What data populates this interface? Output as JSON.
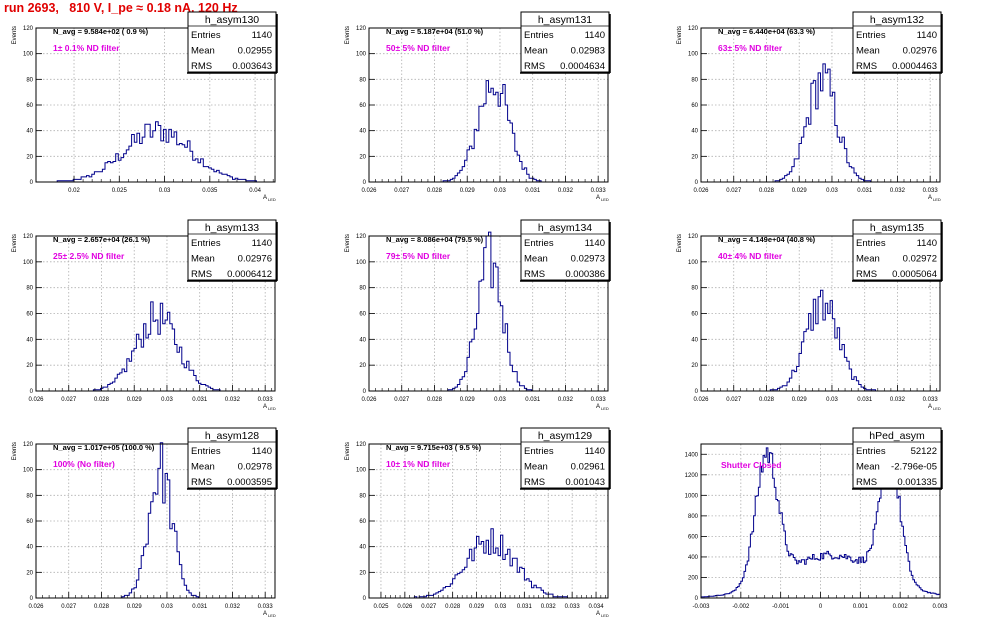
{
  "page": {
    "title": "run 2693,   810 V, I_pe ≈ 0.18 nA, 120 Hz"
  },
  "colors": {
    "title": "#e00000",
    "histogram": "#00008b",
    "annotation": "#e000e0",
    "grid": "#b0b0b0",
    "axis": "#000000"
  },
  "chart_data": [
    {
      "type": "histogram",
      "stats": {
        "name": "h_asym130",
        "entries": "1140",
        "mean": "0.02955",
        "rms": "0.003643"
      },
      "navg": "N_avg = 9.584e+02 ( 0.9 %)",
      "annotation": "1± 0.1% ND filter",
      "ylabel": "Events",
      "xlabel": "A",
      "xlabel_sub": "LED",
      "xlim": [
        0.0158,
        0.0422
      ],
      "ylim": [
        0,
        120
      ],
      "xticks": [
        0.02,
        0.025,
        0.03,
        0.035,
        0.04
      ],
      "xtick_labels": [
        "0.02",
        "0.025",
        "0.03",
        "0.035",
        "0.04"
      ],
      "yticks": [
        0,
        20,
        40,
        60,
        80,
        100,
        120
      ],
      "ytick_labels": [
        "0",
        "20",
        "40",
        "60",
        "80",
        "100",
        "120"
      ],
      "peak_x": 0.0293,
      "sigma": 0.0037,
      "peak_y": 40,
      "bins": 90
    },
    {
      "type": "histogram",
      "stats": {
        "name": "h_asym131",
        "entries": "1140",
        "mean": "0.02983",
        "rms": "0.0004634"
      },
      "navg": "N_avg = 5.187e+04 (51.0 %)",
      "annotation": "50± 5% ND filter",
      "ylabel": "Events",
      "xlabel": "A",
      "xlabel_sub": "LED",
      "xlim": [
        0.026,
        0.0333
      ],
      "ylim": [
        0,
        120
      ],
      "xticks": [
        0.026,
        0.027,
        0.028,
        0.029,
        0.03,
        0.031,
        0.032,
        0.033
      ],
      "xtick_labels": [
        "0.026",
        "0.027",
        "0.028",
        "0.029",
        "0.03",
        "0.031",
        "0.032",
        "0.033"
      ],
      "yticks": [
        0,
        20,
        40,
        60,
        80,
        100,
        120
      ],
      "ytick_labels": [
        "0",
        "20",
        "40",
        "60",
        "80",
        "100",
        "120"
      ],
      "peak_x": 0.0298,
      "sigma": 0.00047,
      "peak_y": 78,
      "bins": 100
    },
    {
      "type": "histogram",
      "stats": {
        "name": "h_asym132",
        "entries": "1140",
        "mean": "0.02976",
        "rms": "0.0004463"
      },
      "navg": "N_avg = 6.440e+04 (63.3 %)",
      "annotation": "63± 5% ND filter",
      "ylabel": "Events",
      "xlabel": "A",
      "xlabel_sub": "LED",
      "xlim": [
        0.026,
        0.0333
      ],
      "ylim": [
        0,
        120
      ],
      "xticks": [
        0.026,
        0.027,
        0.028,
        0.029,
        0.03,
        0.031,
        0.032,
        0.033
      ],
      "xtick_labels": [
        "0.026",
        "0.027",
        "0.028",
        "0.029",
        "0.03",
        "0.031",
        "0.032",
        "0.033"
      ],
      "yticks": [
        0,
        20,
        40,
        60,
        80,
        100,
        120
      ],
      "ytick_labels": [
        "0",
        "20",
        "40",
        "60",
        "80",
        "100",
        "120"
      ],
      "peak_x": 0.0297,
      "sigma": 0.00045,
      "peak_y": 80,
      "bins": 100
    },
    {
      "type": "histogram",
      "stats": {
        "name": "h_asym133",
        "entries": "1140",
        "mean": "0.02976",
        "rms": "0.0006412"
      },
      "navg": "N_avg = 2.657e+04 (26.1 %)",
      "annotation": "25± 2.5% ND filter",
      "ylabel": "Events",
      "xlabel": "A",
      "xlabel_sub": "LED",
      "xlim": [
        0.026,
        0.0333
      ],
      "ylim": [
        0,
        120
      ],
      "xticks": [
        0.026,
        0.027,
        0.028,
        0.029,
        0.03,
        0.031,
        0.032,
        0.033
      ],
      "xtick_labels": [
        "0.026",
        "0.027",
        "0.028",
        "0.029",
        "0.03",
        "0.031",
        "0.032",
        "0.033"
      ],
      "yticks": [
        0,
        20,
        40,
        60,
        80,
        100,
        120
      ],
      "ytick_labels": [
        "0",
        "20",
        "40",
        "60",
        "80",
        "100",
        "120"
      ],
      "peak_x": 0.0297,
      "sigma": 0.00064,
      "peak_y": 57,
      "bins": 100
    },
    {
      "type": "histogram",
      "stats": {
        "name": "h_asym134",
        "entries": "1140",
        "mean": "0.02973",
        "rms": "0.000386"
      },
      "navg": "N_avg = 8.086e+04 (79.5 %)",
      "annotation": "79± 5% ND filter",
      "ylabel": "Events",
      "xlabel": "A",
      "xlabel_sub": "LED",
      "xlim": [
        0.026,
        0.0333
      ],
      "ylim": [
        0,
        120
      ],
      "xticks": [
        0.026,
        0.027,
        0.028,
        0.029,
        0.03,
        0.031,
        0.032,
        0.033
      ],
      "xtick_labels": [
        "0.026",
        "0.027",
        "0.028",
        "0.029",
        "0.03",
        "0.031",
        "0.032",
        "0.033"
      ],
      "yticks": [
        0,
        20,
        40,
        60,
        80,
        100,
        120
      ],
      "ytick_labels": [
        "0",
        "20",
        "40",
        "60",
        "80",
        "100",
        "120"
      ],
      "peak_x": 0.0297,
      "sigma": 0.00039,
      "peak_y": 100,
      "bins": 100
    },
    {
      "type": "histogram",
      "stats": {
        "name": "h_asym135",
        "entries": "1140",
        "mean": "0.02972",
        "rms": "0.0005064"
      },
      "navg": "N_avg = 4.149e+04 (40.8 %)",
      "annotation": "40± 4% ND filter",
      "ylabel": "Events",
      "xlabel": "A",
      "xlabel_sub": "LED",
      "xlim": [
        0.026,
        0.0333
      ],
      "ylim": [
        0,
        120
      ],
      "xticks": [
        0.026,
        0.027,
        0.028,
        0.029,
        0.03,
        0.031,
        0.032,
        0.033
      ],
      "xtick_labels": [
        "0.026",
        "0.027",
        "0.028",
        "0.029",
        "0.03",
        "0.031",
        "0.032",
        "0.033"
      ],
      "yticks": [
        0,
        20,
        40,
        60,
        80,
        100,
        120
      ],
      "ytick_labels": [
        "0",
        "20",
        "40",
        "60",
        "80",
        "100",
        "120"
      ],
      "peak_x": 0.0297,
      "sigma": 0.0005,
      "peak_y": 68,
      "bins": 100
    },
    {
      "type": "histogram",
      "stats": {
        "name": "h_asym128",
        "entries": "1140",
        "mean": "0.02978",
        "rms": "0.0003595"
      },
      "navg": "N_avg = 1.017e+05 (100.0 %)",
      "annotation": "100% (No filter)",
      "ylabel": "Events",
      "xlabel": "A",
      "xlabel_sub": "LED",
      "xlim": [
        0.026,
        0.0333
      ],
      "ylim": [
        0,
        120
      ],
      "xticks": [
        0.026,
        0.027,
        0.028,
        0.029,
        0.03,
        0.031,
        0.032,
        0.033
      ],
      "xtick_labels": [
        "0.026",
        "0.027",
        "0.028",
        "0.029",
        "0.03",
        "0.031",
        "0.032",
        "0.033"
      ],
      "yticks": [
        0,
        20,
        40,
        60,
        80,
        100,
        120
      ],
      "ytick_labels": [
        "0",
        "20",
        "40",
        "60",
        "80",
        "100",
        "120"
      ],
      "peak_x": 0.0298,
      "sigma": 0.00036,
      "peak_y": 100,
      "bins": 100
    },
    {
      "type": "histogram",
      "stats": {
        "name": "h_asym129",
        "entries": "1140",
        "mean": "0.02961",
        "rms": "0.001043"
      },
      "navg": "N_avg = 9.715e+03 ( 9.5 %)",
      "annotation": "10± 1% ND filter",
      "ylabel": "Events",
      "xlabel": "A",
      "xlabel_sub": "LED",
      "xlim": [
        0.0245,
        0.0345
      ],
      "ylim": [
        0,
        120
      ],
      "xticks": [
        0.025,
        0.026,
        0.027,
        0.028,
        0.029,
        0.03,
        0.031,
        0.032,
        0.033,
        0.034
      ],
      "xtick_labels": [
        "0.025",
        "0.026",
        "0.027",
        "0.028",
        "0.029",
        "0.03",
        "0.031",
        "0.032",
        "0.033",
        "0.034"
      ],
      "yticks": [
        0,
        20,
        40,
        60,
        80,
        100,
        120
      ],
      "ytick_labels": [
        "0",
        "20",
        "40",
        "60",
        "80",
        "100",
        "120"
      ],
      "peak_x": 0.0296,
      "sigma": 0.00104,
      "peak_y": 45,
      "bins": 100
    },
    {
      "type": "histogram",
      "stats": {
        "name": "hPed_asym",
        "entries": "52122",
        "mean": "-2.796e-05",
        "rms": "0.001335"
      },
      "navg": "",
      "annotation": "Shutter Closed",
      "ylabel": "",
      "xlabel": "",
      "xlabel_sub": "",
      "xlim": [
        -0.003,
        0.003
      ],
      "ylim": [
        0,
        1500
      ],
      "xticks": [
        -0.003,
        -0.002,
        -0.001,
        0,
        0.001,
        0.002,
        0.003
      ],
      "xtick_labels": [
        "-0.003",
        "-0.002",
        "-0.001",
        "0",
        "0.001",
        "0.002",
        "0.003"
      ],
      "yticks": [
        0,
        200,
        400,
        600,
        800,
        1000,
        1200,
        1400
      ],
      "ytick_labels": [
        "0",
        "200",
        "400",
        "600",
        "800",
        "1000",
        "1200",
        "1400"
      ],
      "shape": "pedestal",
      "peaks": [
        {
          "x": -0.00135,
          "sigma": 0.00028,
          "y": 1250
        },
        {
          "x": 0.00175,
          "sigma": 0.00026,
          "y": 1120
        },
        {
          "x": 0.00028,
          "sigma": 0.0012,
          "y": 420
        }
      ],
      "bins": 150
    }
  ]
}
